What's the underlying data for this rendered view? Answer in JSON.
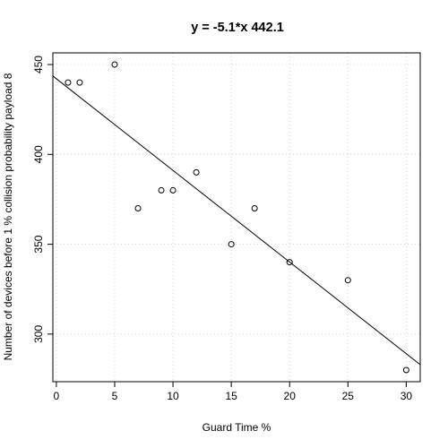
{
  "chart_data": {
    "type": "scatter",
    "title": "y = -5.1*x 442.1",
    "xlabel": "Guard Time %",
    "ylabel": "Number of devices before  1 % collision probability payload 8",
    "xlim": [
      -0.3,
      31.2
    ],
    "ylim": [
      273.5,
      456.5
    ],
    "x_ticks": [
      0,
      5,
      10,
      15,
      20,
      25,
      30
    ],
    "y_ticks": [
      300,
      350,
      400,
      450
    ],
    "grid": true,
    "points": [
      {
        "x": 1,
        "y": 440
      },
      {
        "x": 2,
        "y": 440
      },
      {
        "x": 5,
        "y": 450
      },
      {
        "x": 7,
        "y": 370
      },
      {
        "x": 9,
        "y": 380
      },
      {
        "x": 10,
        "y": 380
      },
      {
        "x": 12,
        "y": 390
      },
      {
        "x": 15,
        "y": 350
      },
      {
        "x": 17,
        "y": 370
      },
      {
        "x": 20,
        "y": 340
      },
      {
        "x": 25,
        "y": 330
      },
      {
        "x": 30,
        "y": 280
      }
    ],
    "fit": {
      "slope": -5.1,
      "intercept": 442.1
    },
    "colors": {
      "points": "#000000",
      "line": "#000000",
      "grid": "#d3d3d3"
    }
  }
}
